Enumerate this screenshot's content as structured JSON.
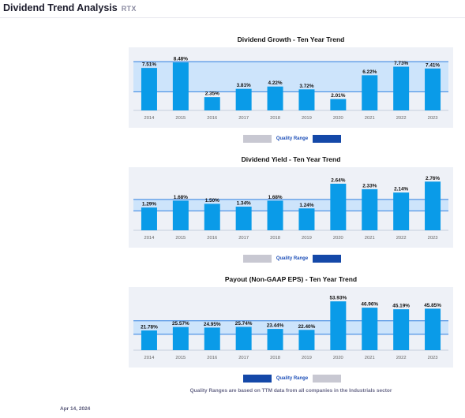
{
  "header": {
    "title": "Dividend Trend Analysis",
    "ticker": "RTX"
  },
  "colors": {
    "bar": "#0a9be8",
    "band": "#cde4fb",
    "rule": "#2f7fe0",
    "frame": "#eef1f7",
    "navy": "#1448a8",
    "grey": "#c8c8d2"
  },
  "chart_data": [
    {
      "type": "bar",
      "title": "Dividend Growth - Ten Year Trend",
      "categories": [
        "2014",
        "2015",
        "2016",
        "2017",
        "2018",
        "2019",
        "2020",
        "2021",
        "2022",
        "2023"
      ],
      "values": [
        7.51,
        8.48,
        2.35,
        3.81,
        4.22,
        3.72,
        2.01,
        6.22,
        7.73,
        7.41
      ],
      "labels": [
        "7.51%",
        "8.48%",
        "2.35%",
        "3.81%",
        "4.22%",
        "3.72%",
        "2.01%",
        "6.22%",
        "7.73%",
        "7.41%"
      ],
      "ylim": [
        0,
        9.2
      ],
      "quality_range": [
        3.3,
        8.6
      ],
      "legend": {
        "label": "Quality Range",
        "low_color": "grey",
        "high_color": "navy"
      }
    },
    {
      "type": "bar",
      "title": "Dividend Yield - Ten Year Trend",
      "categories": [
        "2014",
        "2015",
        "2016",
        "2017",
        "2018",
        "2019",
        "2020",
        "2021",
        "2022",
        "2023"
      ],
      "values": [
        1.29,
        1.68,
        1.5,
        1.34,
        1.68,
        1.24,
        2.64,
        2.33,
        2.14,
        2.76
      ],
      "labels": [
        "1.29%",
        "1.68%",
        "1.50%",
        "1.34%",
        "1.68%",
        "1.24%",
        "2.64%",
        "2.33%",
        "2.14%",
        "2.76%"
      ],
      "ylim": [
        0,
        2.95
      ],
      "quality_range": [
        1.1,
        1.75
      ],
      "legend": {
        "label": "Quality Range",
        "low_color": "grey",
        "high_color": "navy"
      }
    },
    {
      "type": "bar",
      "title": "Payout (Non-GAAP EPS) - Ten Year Trend",
      "categories": [
        "2014",
        "2015",
        "2016",
        "2017",
        "2018",
        "2019",
        "2020",
        "2021",
        "2022",
        "2023"
      ],
      "values": [
        21.78,
        25.57,
        24.95,
        25.74,
        23.44,
        22.4,
        53.93,
        46.96,
        45.19,
        45.85
      ],
      "labels": [
        "21.78%",
        "25.57%",
        "24.95%",
        "25.74%",
        "23.44%",
        "22.40%",
        "53.93%",
        "46.96%",
        "45.19%",
        "45.85%"
      ],
      "ylim": [
        0,
        57.5
      ],
      "quality_range": [
        17.5,
        32.5
      ],
      "legend": {
        "label": "Quality Range",
        "low_color": "navy",
        "high_color": "grey"
      }
    }
  ],
  "footnote": "Quality Ranges are based on TTM data from all companies in the Industrials sector",
  "report_date": "Apr 14, 2024"
}
